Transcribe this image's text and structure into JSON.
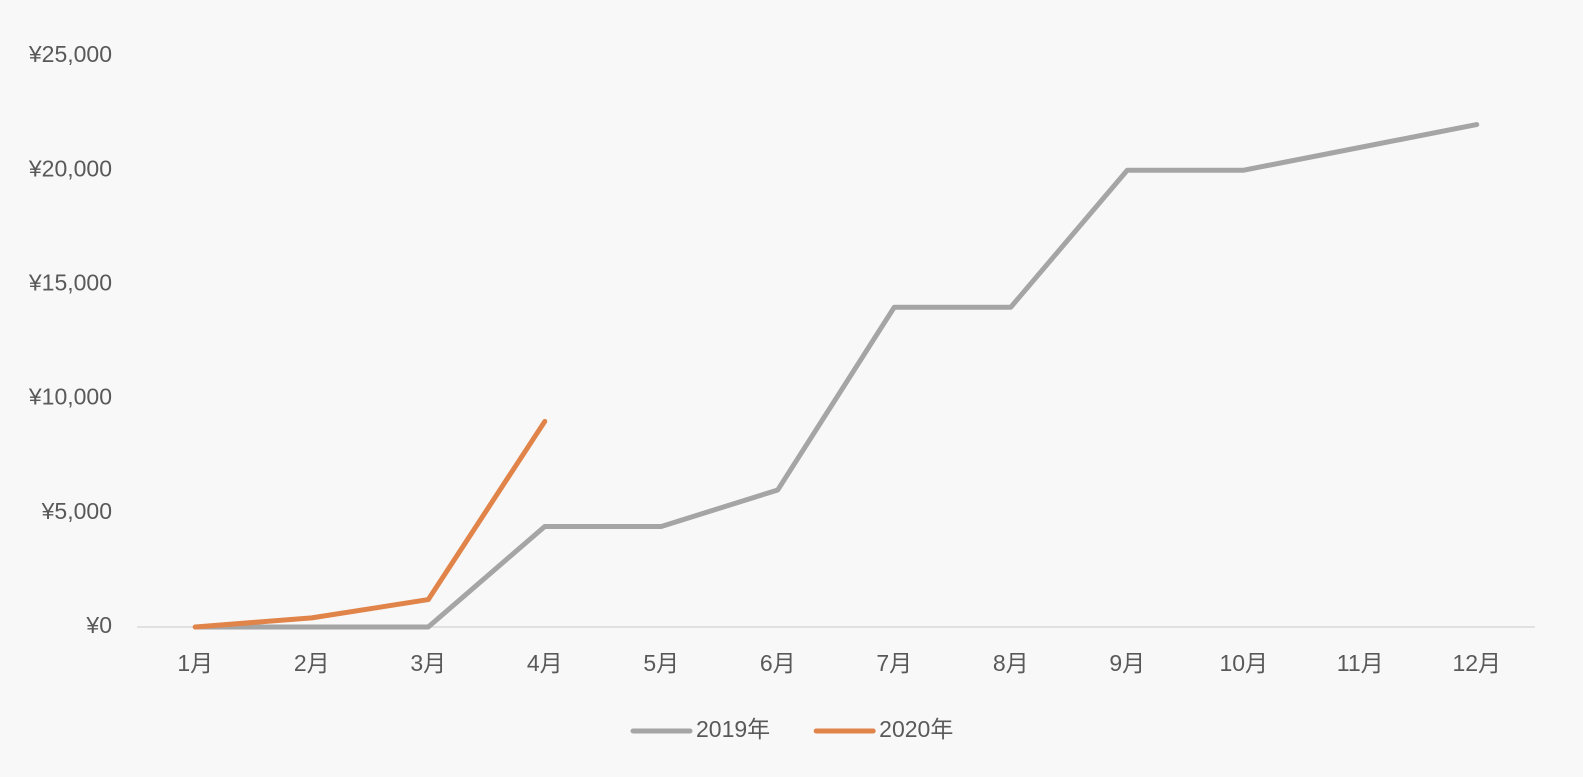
{
  "chart_data": {
    "type": "line",
    "categories": [
      "1月",
      "2月",
      "3月",
      "4月",
      "5月",
      "6月",
      "7月",
      "8月",
      "9月",
      "10月",
      "11月",
      "12月"
    ],
    "series": [
      {
        "name": "2019年",
        "color": "#a5a5a5",
        "values": [
          0,
          0,
          0,
          4400,
          4400,
          6000,
          14000,
          14000,
          20000,
          20000,
          21000,
          22000
        ]
      },
      {
        "name": "2020年",
        "color": "#e0844a",
        "values": [
          0,
          400,
          1200,
          9000,
          null,
          null,
          null,
          null,
          null,
          null,
          null,
          null
        ]
      }
    ],
    "ylim": [
      0,
      25000
    ],
    "yticks": [
      {
        "value": 0,
        "label": "¥0"
      },
      {
        "value": 5000,
        "label": "¥5,000"
      },
      {
        "value": 10000,
        "label": "¥10,000"
      },
      {
        "value": 15000,
        "label": "¥15,000"
      },
      {
        "value": 20000,
        "label": "¥20,000"
      },
      {
        "value": 25000,
        "label": "¥25,000"
      }
    ],
    "grid": false,
    "legend": "bottom"
  }
}
